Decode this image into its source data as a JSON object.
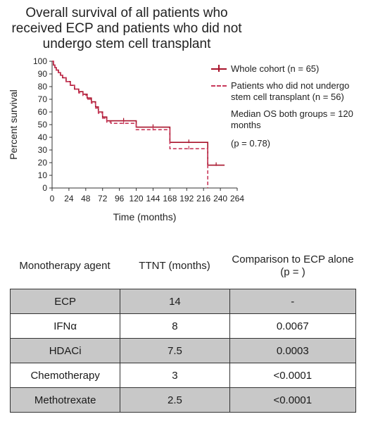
{
  "chart_data": {
    "type": "line",
    "title": "Overall survival of all patients who received ECP and patients who did not undergo stem cell transplant",
    "xlabel": "Time (months)",
    "ylabel": "Percent survival",
    "xlim": [
      0,
      264
    ],
    "ylim": [
      0,
      100
    ],
    "x_ticks": [
      0,
      24,
      48,
      72,
      96,
      120,
      144,
      168,
      192,
      216,
      240,
      264
    ],
    "y_ticks": [
      0,
      10,
      20,
      30,
      40,
      50,
      60,
      70,
      80,
      90,
      100
    ],
    "series": [
      {
        "name": "Whole cohort (n = 65)",
        "style": "solid",
        "color": "#a8122a",
        "x": [
          0,
          2,
          4,
          6,
          9,
          12,
          15,
          20,
          26,
          32,
          38,
          44,
          50,
          56,
          62,
          66,
          72,
          78,
          84,
          120,
          168,
          222,
          246
        ],
        "y": [
          100,
          97,
          95,
          93,
          91,
          89,
          87,
          84,
          81,
          78,
          76,
          74,
          71,
          68,
          64,
          60,
          56,
          53,
          53,
          48,
          36,
          18,
          18
        ]
      },
      {
        "name": "Patients who did not undergo stem cell transplant (n = 56)",
        "style": "dashed",
        "color": "#c8385a",
        "x": [
          0,
          2,
          4,
          6,
          9,
          12,
          15,
          20,
          26,
          32,
          38,
          44,
          50,
          56,
          62,
          66,
          72,
          78,
          84,
          120,
          168,
          222
        ],
        "y": [
          100,
          97,
          95,
          93,
          91,
          89,
          87,
          84,
          81,
          78,
          75,
          73,
          70,
          67,
          63,
          59,
          55,
          52,
          51,
          46,
          31,
          0
        ]
      }
    ],
    "annotations": [
      "Median OS both groups = 120 months",
      "(p = 0.78)"
    ]
  },
  "legend": {
    "whole": "Whole cohort (n = 65)",
    "no_sct": "Patients who did not undergo stem cell transplant (n = 56)",
    "median": "Median OS both groups = 120 months",
    "pvalue": "(p = 0.78)"
  },
  "table": {
    "headers": [
      "Monotherapy agent",
      "TTNT (months)",
      "Comparison to ECP alone (p = )"
    ],
    "rows": [
      [
        "ECP",
        "14",
        "-"
      ],
      [
        "IFNα",
        "8",
        "0.0067"
      ],
      [
        "HDACi",
        "7.5",
        "0.0003"
      ],
      [
        "Chemotherapy",
        "3",
        "<0.0001"
      ],
      [
        "Methotrexate",
        "2.5",
        "<0.0001"
      ]
    ]
  }
}
